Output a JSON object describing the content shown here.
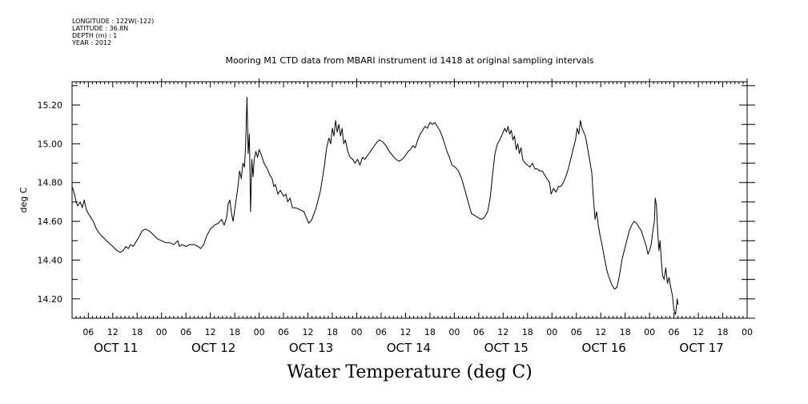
{
  "header": {
    "longitude": "LONGITUDE : 122W(-122)",
    "latitude": "LATITUDE : 36.8N",
    "depth": "DEPTH (m) : 1",
    "year": "YEAR : 2012"
  },
  "chart_data": {
    "type": "line",
    "title": "Mooring M1 CTD data from MBARI instrument id 1418 at original sampling intervals",
    "bottom_title": "Water Temperature (deg C)",
    "ylabel": "deg C",
    "xlabel": "",
    "ylim": [
      14.1,
      15.32
    ],
    "xlim_hours": [
      0,
      166
    ],
    "y_ticks": [
      {
        "value": 14.2,
        "label": "14.20"
      },
      {
        "value": 14.4,
        "label": "14.40"
      },
      {
        "value": 14.6,
        "label": "14.60"
      },
      {
        "value": 14.8,
        "label": "14.80"
      },
      {
        "value": 15.0,
        "label": "15.00"
      },
      {
        "value": 15.2,
        "label": "15.20"
      }
    ],
    "x_hour_ticks": [
      {
        "t": 4,
        "label": "06"
      },
      {
        "t": 10,
        "label": "12"
      },
      {
        "t": 16,
        "label": "18"
      },
      {
        "t": 22,
        "label": "00"
      },
      {
        "t": 28,
        "label": "06"
      },
      {
        "t": 34,
        "label": "12"
      },
      {
        "t": 40,
        "label": "18"
      },
      {
        "t": 46,
        "label": "00"
      },
      {
        "t": 52,
        "label": "06"
      },
      {
        "t": 58,
        "label": "12"
      },
      {
        "t": 64,
        "label": "18"
      },
      {
        "t": 70,
        "label": "00"
      },
      {
        "t": 76,
        "label": "06"
      },
      {
        "t": 82,
        "label": "12"
      },
      {
        "t": 88,
        "label": "18"
      },
      {
        "t": 94,
        "label": "00"
      },
      {
        "t": 100,
        "label": "06"
      },
      {
        "t": 106,
        "label": "12"
      },
      {
        "t": 112,
        "label": "18"
      },
      {
        "t": 118,
        "label": "00"
      },
      {
        "t": 124,
        "label": "06"
      },
      {
        "t": 130,
        "label": "12"
      },
      {
        "t": 136,
        "label": "18"
      },
      {
        "t": 142,
        "label": "00"
      },
      {
        "t": 148,
        "label": "06"
      },
      {
        "t": 154,
        "label": "12"
      },
      {
        "t": 160,
        "label": "18"
      },
      {
        "t": 166,
        "label": "00"
      }
    ],
    "x_day_labels": [
      {
        "t": 10,
        "label": "OCT 11"
      },
      {
        "t": 34,
        "label": "OCT 12"
      },
      {
        "t": 58,
        "label": "OCT 13"
      },
      {
        "t": 82,
        "label": "OCT 14"
      },
      {
        "t": 106,
        "label": "OCT 15"
      },
      {
        "t": 130,
        "label": "OCT 16"
      },
      {
        "t": 154,
        "label": "OCT 17"
      }
    ],
    "series": [
      {
        "points": [
          [
            0,
            14.78
          ],
          [
            0.6,
            14.74
          ],
          [
            1.0,
            14.7
          ],
          [
            1.4,
            14.68
          ],
          [
            2.0,
            14.7
          ],
          [
            2.5,
            14.67
          ],
          [
            3.0,
            14.71
          ],
          [
            3.5,
            14.66
          ],
          [
            4.0,
            14.64
          ],
          [
            4.6,
            14.62
          ],
          [
            5.2,
            14.6
          ],
          [
            6.0,
            14.56
          ],
          [
            7.0,
            14.53
          ],
          [
            8.0,
            14.51
          ],
          [
            9.0,
            14.49
          ],
          [
            10.0,
            14.47
          ],
          [
            11.0,
            14.45
          ],
          [
            11.8,
            14.44
          ],
          [
            12.6,
            14.45
          ],
          [
            13.2,
            14.47
          ],
          [
            13.8,
            14.46
          ],
          [
            14.4,
            14.48
          ],
          [
            15.0,
            14.47
          ],
          [
            15.6,
            14.49
          ],
          [
            16.5,
            14.52
          ],
          [
            17.2,
            14.55
          ],
          [
            18.0,
            14.56
          ],
          [
            19.0,
            14.55
          ],
          [
            20.0,
            14.53
          ],
          [
            21.0,
            14.51
          ],
          [
            22.0,
            14.5
          ],
          [
            23.0,
            14.49
          ],
          [
            24.0,
            14.49
          ],
          [
            25.0,
            14.48
          ],
          [
            26.0,
            14.5
          ],
          [
            26.4,
            14.47
          ],
          [
            27.0,
            14.48
          ],
          [
            28.0,
            14.47
          ],
          [
            29.0,
            14.48
          ],
          [
            30.0,
            14.48
          ],
          [
            31.0,
            14.47
          ],
          [
            31.6,
            14.46
          ],
          [
            32.4,
            14.48
          ],
          [
            33.0,
            14.52
          ],
          [
            34.0,
            14.56
          ],
          [
            35.0,
            14.58
          ],
          [
            36.0,
            14.59
          ],
          [
            36.8,
            14.61
          ],
          [
            37.4,
            14.58
          ],
          [
            38.0,
            14.62
          ],
          [
            38.4,
            14.69
          ],
          [
            38.8,
            14.71
          ],
          [
            39.2,
            14.64
          ],
          [
            39.6,
            14.6
          ],
          [
            40.0,
            14.66
          ],
          [
            40.4,
            14.72
          ],
          [
            40.8,
            14.78
          ],
          [
            41.2,
            14.86
          ],
          [
            41.6,
            14.82
          ],
          [
            42.0,
            14.9
          ],
          [
            42.4,
            14.88
          ],
          [
            42.7,
            15.0
          ],
          [
            43.0,
            15.24
          ],
          [
            43.3,
            14.95
          ],
          [
            43.6,
            15.05
          ],
          [
            43.9,
            14.65
          ],
          [
            44.2,
            14.92
          ],
          [
            44.5,
            14.83
          ],
          [
            44.8,
            14.92
          ],
          [
            45.2,
            14.96
          ],
          [
            45.6,
            14.93
          ],
          [
            46.0,
            14.97
          ],
          [
            46.6,
            14.94
          ],
          [
            47.2,
            14.9
          ],
          [
            48.0,
            14.87
          ],
          [
            48.6,
            14.84
          ],
          [
            49.2,
            14.82
          ],
          [
            49.6,
            14.78
          ],
          [
            50.0,
            14.79
          ],
          [
            50.6,
            14.74
          ],
          [
            51.2,
            14.76
          ],
          [
            52.0,
            14.73
          ],
          [
            52.6,
            14.74
          ],
          [
            53.0,
            14.7
          ],
          [
            53.6,
            14.72
          ],
          [
            54.2,
            14.67
          ],
          [
            55.0,
            14.67
          ],
          [
            56.0,
            14.66
          ],
          [
            57.0,
            14.65
          ],
          [
            57.6,
            14.62
          ],
          [
            58.2,
            14.59
          ],
          [
            59.0,
            14.61
          ],
          [
            60.0,
            14.67
          ],
          [
            61.0,
            14.75
          ],
          [
            62.0,
            14.88
          ],
          [
            62.6,
            14.98
          ],
          [
            63.2,
            15.03
          ],
          [
            63.6,
            15.0
          ],
          [
            64.0,
            15.08
          ],
          [
            64.4,
            15.04
          ],
          [
            64.8,
            15.12
          ],
          [
            65.2,
            15.06
          ],
          [
            65.6,
            15.1
          ],
          [
            66.0,
            15.04
          ],
          [
            66.4,
            15.08
          ],
          [
            66.8,
            15.0
          ],
          [
            67.2,
            15.02
          ],
          [
            67.8,
            14.96
          ],
          [
            68.4,
            14.93
          ],
          [
            69.0,
            14.92
          ],
          [
            69.6,
            14.9
          ],
          [
            70.2,
            14.92
          ],
          [
            70.8,
            14.89
          ],
          [
            71.4,
            14.93
          ],
          [
            72.0,
            14.92
          ],
          [
            73.0,
            14.95
          ],
          [
            74.0,
            14.98
          ],
          [
            75.0,
            15.01
          ],
          [
            75.6,
            15.02
          ],
          [
            76.4,
            15.01
          ],
          [
            77.2,
            14.99
          ],
          [
            78.0,
            14.96
          ],
          [
            78.8,
            14.94
          ],
          [
            79.6,
            14.92
          ],
          [
            80.4,
            14.91
          ],
          [
            81.2,
            14.92
          ],
          [
            82.0,
            14.94
          ],
          [
            82.6,
            14.96
          ],
          [
            83.2,
            14.97
          ],
          [
            83.8,
            14.99
          ],
          [
            84.4,
            14.98
          ],
          [
            85.0,
            15.02
          ],
          [
            85.6,
            15.05
          ],
          [
            86.2,
            15.07
          ],
          [
            86.8,
            15.09
          ],
          [
            87.4,
            15.08
          ],
          [
            88.0,
            15.11
          ],
          [
            88.6,
            15.1
          ],
          [
            89.2,
            15.11
          ],
          [
            89.8,
            15.09
          ],
          [
            90.4,
            15.07
          ],
          [
            91.0,
            15.04
          ],
          [
            91.6,
            15.0
          ],
          [
            92.2,
            14.96
          ],
          [
            92.8,
            14.93
          ],
          [
            93.4,
            14.89
          ],
          [
            94.2,
            14.88
          ],
          [
            95.0,
            14.86
          ],
          [
            95.8,
            14.82
          ],
          [
            96.6,
            14.76
          ],
          [
            97.4,
            14.7
          ],
          [
            98.2,
            14.64
          ],
          [
            99.0,
            14.63
          ],
          [
            99.8,
            14.62
          ],
          [
            100.6,
            14.61
          ],
          [
            101.4,
            14.62
          ],
          [
            102.2,
            14.65
          ],
          [
            102.8,
            14.72
          ],
          [
            103.4,
            14.84
          ],
          [
            104.0,
            14.95
          ],
          [
            104.6,
            15.0
          ],
          [
            105.2,
            15.02
          ],
          [
            105.8,
            15.05
          ],
          [
            106.4,
            15.08
          ],
          [
            106.8,
            15.06
          ],
          [
            107.2,
            15.09
          ],
          [
            107.6,
            15.05
          ],
          [
            108.0,
            15.07
          ],
          [
            108.4,
            15.02
          ],
          [
            108.8,
            15.04
          ],
          [
            109.2,
            14.97
          ],
          [
            109.6,
            15.0
          ],
          [
            110.0,
            14.95
          ],
          [
            110.4,
            14.98
          ],
          [
            110.8,
            14.92
          ],
          [
            111.4,
            14.9
          ],
          [
            112.0,
            14.89
          ],
          [
            112.6,
            14.88
          ],
          [
            113.2,
            14.9
          ],
          [
            113.8,
            14.87
          ],
          [
            114.4,
            14.87
          ],
          [
            115.0,
            14.86
          ],
          [
            115.6,
            14.86
          ],
          [
            116.2,
            14.84
          ],
          [
            116.8,
            14.82
          ],
          [
            117.4,
            14.8
          ],
          [
            117.8,
            14.74
          ],
          [
            118.4,
            14.77
          ],
          [
            119.0,
            14.75
          ],
          [
            119.6,
            14.78
          ],
          [
            120.2,
            14.78
          ],
          [
            120.8,
            14.8
          ],
          [
            121.4,
            14.83
          ],
          [
            122.0,
            14.87
          ],
          [
            122.6,
            14.92
          ],
          [
            123.2,
            14.97
          ],
          [
            123.8,
            15.02
          ],
          [
            124.2,
            15.08
          ],
          [
            124.6,
            15.05
          ],
          [
            125.0,
            15.12
          ],
          [
            125.4,
            15.08
          ],
          [
            125.8,
            15.06
          ],
          [
            126.2,
            15.04
          ],
          [
            126.6,
            15.0
          ],
          [
            127.0,
            14.95
          ],
          [
            127.4,
            14.9
          ],
          [
            127.8,
            14.85
          ],
          [
            128.2,
            14.72
          ],
          [
            128.6,
            14.61
          ],
          [
            129.0,
            14.65
          ],
          [
            129.4,
            14.58
          ],
          [
            129.8,
            14.53
          ],
          [
            130.4,
            14.47
          ],
          [
            131.0,
            14.4
          ],
          [
            131.6,
            14.34
          ],
          [
            132.2,
            14.3
          ],
          [
            132.8,
            14.27
          ],
          [
            133.4,
            14.25
          ],
          [
            134.0,
            14.26
          ],
          [
            134.6,
            14.32
          ],
          [
            135.2,
            14.4
          ],
          [
            135.8,
            14.45
          ],
          [
            136.4,
            14.5
          ],
          [
            137.0,
            14.55
          ],
          [
            137.6,
            14.58
          ],
          [
            138.2,
            14.6
          ],
          [
            138.8,
            14.59
          ],
          [
            139.4,
            14.57
          ],
          [
            140.0,
            14.55
          ],
          [
            140.6,
            14.51
          ],
          [
            141.2,
            14.47
          ],
          [
            141.6,
            14.43
          ],
          [
            142.0,
            14.45
          ],
          [
            142.4,
            14.48
          ],
          [
            142.8,
            14.55
          ],
          [
            143.2,
            14.6
          ],
          [
            143.4,
            14.72
          ],
          [
            143.7,
            14.68
          ],
          [
            144.0,
            14.55
          ],
          [
            144.3,
            14.45
          ],
          [
            144.6,
            14.5
          ],
          [
            144.9,
            14.4
          ],
          [
            145.2,
            14.32
          ],
          [
            145.6,
            14.3
          ],
          [
            146.0,
            14.36
          ],
          [
            146.4,
            14.28
          ],
          [
            146.8,
            14.31
          ],
          [
            147.2,
            14.26
          ],
          [
            147.6,
            14.22
          ],
          [
            148.0,
            14.14
          ],
          [
            148.4,
            14.12
          ],
          [
            148.8,
            14.2
          ],
          [
            149.0,
            14.17
          ]
        ]
      }
    ]
  }
}
